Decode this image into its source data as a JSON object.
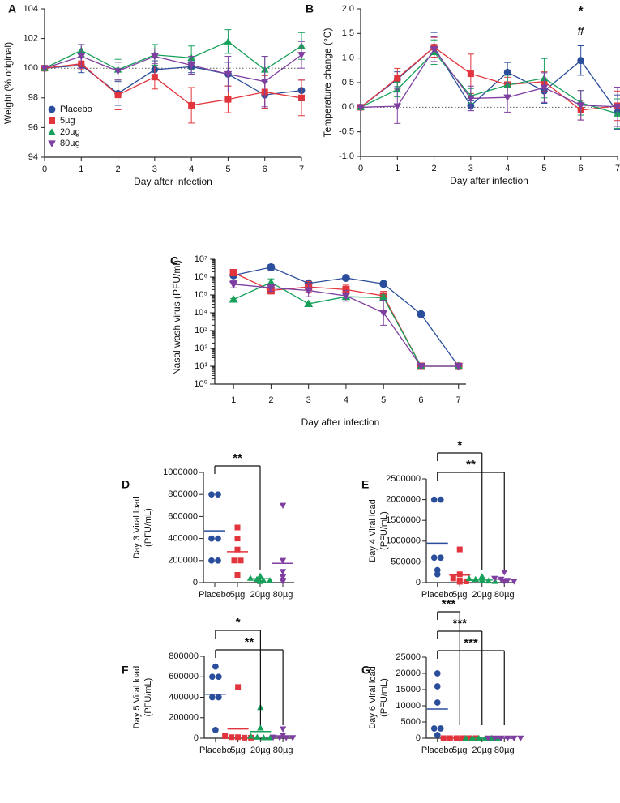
{
  "colors": {
    "placebo": "#2a4e9b",
    "5ug": "#e2343c",
    "20ug": "#16a05a",
    "80ug": "#7e3fa0"
  },
  "chart_data": [
    {
      "panel": "A",
      "type": "line",
      "xlabel": "Day after infection",
      "ylabel": "Weight (% original)",
      "x": [
        0,
        1,
        2,
        3,
        4,
        5,
        6,
        7
      ],
      "xlim": [
        0,
        7
      ],
      "ylim": [
        94,
        104
      ],
      "yticks": [
        94,
        96,
        98,
        100,
        102,
        104
      ],
      "reference_line": 100,
      "legend": "top-left",
      "series": [
        {
          "name": "Placebo",
          "key": "placebo",
          "marker": "circle",
          "values": [
            100,
            100.2,
            98.3,
            99.9,
            100.1,
            99.6,
            98.2,
            98.5
          ],
          "err": [
            0,
            0.5,
            0.8,
            0.6,
            0.4,
            0.8,
            0.9,
            0.7
          ]
        },
        {
          "name": "5µg",
          "key": "5ug",
          "marker": "square",
          "values": [
            100,
            100.3,
            98.2,
            99.4,
            97.5,
            97.9,
            98.4,
            98.0
          ],
          "err": [
            0,
            0.4,
            1.0,
            0.8,
            1.2,
            0.9,
            1.1,
            1.2
          ]
        },
        {
          "name": "20µg",
          "key": "20ug",
          "marker": "triangle",
          "values": [
            100,
            101.2,
            99.9,
            100.9,
            100.7,
            101.8,
            99.9,
            101.5
          ],
          "err": [
            0,
            0.4,
            0.7,
            0.7,
            0.8,
            0.8,
            0.9,
            0.9
          ]
        },
        {
          "name": "80µg",
          "key": "80ug",
          "marker": "triangle-down",
          "values": [
            100,
            100.8,
            99.8,
            100.8,
            100.2,
            99.6,
            99.1,
            100.9
          ],
          "err": [
            0,
            0.8,
            0.6,
            0.5,
            0.6,
            1.2,
            1.7,
            0.9
          ]
        }
      ]
    },
    {
      "panel": "B",
      "type": "line",
      "xlabel": "Day after infection",
      "ylabel": "Temperature change (°C)",
      "x": [
        0,
        1,
        2,
        3,
        4,
        5,
        6,
        7
      ],
      "xlim": [
        0,
        7
      ],
      "ylim": [
        -1.0,
        2.0
      ],
      "yticks": [
        -1.0,
        -0.5,
        0.0,
        0.5,
        1.0,
        1.5,
        2.0
      ],
      "reference_line": 0,
      "annotations": [
        {
          "x": 6,
          "texts": [
            "*",
            "#"
          ]
        }
      ],
      "series": [
        {
          "name": "Placebo",
          "key": "placebo",
          "marker": "circle",
          "values": [
            0,
            0.57,
            1.22,
            0.03,
            0.71,
            0.33,
            0.95,
            -0.1
          ],
          "err": [
            0,
            0.15,
            0.3,
            0.1,
            0.2,
            0.25,
            0.3,
            0.35
          ]
        },
        {
          "name": "5µg",
          "key": "5ug",
          "marker": "square",
          "values": [
            0,
            0.59,
            1.22,
            0.68,
            0.46,
            0.52,
            -0.06,
            0.03
          ],
          "err": [
            0,
            0.2,
            0.2,
            0.4,
            0.15,
            0.2,
            0.2,
            0.3
          ]
        },
        {
          "name": "20µg",
          "key": "20ug",
          "marker": "triangle",
          "values": [
            0,
            0.36,
            1.12,
            0.23,
            0.45,
            0.59,
            0.09,
            -0.13
          ],
          "err": [
            0,
            0.15,
            0.25,
            0.15,
            0.2,
            0.4,
            0.25,
            0.3
          ]
        },
        {
          "name": "80µg",
          "key": "80ug",
          "marker": "triangle-down",
          "values": [
            0,
            0.02,
            1.18,
            0.18,
            0.2,
            0.4,
            0.04,
            0.01
          ],
          "err": [
            0,
            0.35,
            0.25,
            0.25,
            0.3,
            0.3,
            0.3,
            0.4
          ]
        }
      ]
    },
    {
      "panel": "C",
      "type": "line",
      "scale": "log10",
      "xlabel": "Day after infection",
      "ylabel": "Nasal wash virus (PFU/ml)",
      "x": [
        1,
        2,
        3,
        4,
        5,
        6,
        7
      ],
      "xlim": [
        0.5,
        7.2
      ],
      "ylim_log10": [
        0,
        7
      ],
      "ytick_labels": [
        "10⁰",
        "10¹",
        "10²",
        "10³",
        "10⁴",
        "10⁵",
        "10⁶",
        "10⁷"
      ],
      "series": [
        {
          "name": "Placebo",
          "key": "placebo",
          "marker": "circle",
          "log10_values": [
            6.1,
            6.55,
            5.65,
            5.95,
            5.62,
            3.92,
            1.0
          ],
          "log10_err": [
            0.1,
            0.15,
            0.05,
            0.1,
            0.05,
            0.1,
            0
          ]
        },
        {
          "name": "5µg",
          "key": "5ug",
          "marker": "square",
          "log10_values": [
            6.25,
            5.25,
            5.45,
            5.3,
            4.95,
            1.0,
            1.0
          ],
          "log10_err": [
            0.15,
            0.2,
            0.3,
            0.25,
            0.25,
            0,
            0
          ]
        },
        {
          "name": "20µg",
          "key": "20ug",
          "marker": "triangle",
          "log10_values": [
            4.75,
            5.7,
            4.5,
            4.9,
            4.85,
            1.0,
            1.0
          ],
          "log10_err": [
            0.05,
            0.2,
            0.05,
            0.1,
            0.15,
            0,
            0
          ]
        },
        {
          "name": "80µg",
          "key": "80ug",
          "marker": "triangle-down",
          "log10_values": [
            5.6,
            5.4,
            5.25,
            4.95,
            4.0,
            1.0,
            1.0
          ],
          "log10_err": [
            0.2,
            0.2,
            0.35,
            0.3,
            0.7,
            0,
            0
          ]
        }
      ]
    },
    {
      "panel": "D",
      "type": "scatter",
      "ylabel_lines": [
        "Day 3 Viral load",
        "(PFU/mL)"
      ],
      "categories": [
        "Placebo",
        "5µg",
        "20µg",
        "80µg"
      ],
      "ylim": [
        0,
        1000000
      ],
      "yticks": [
        0,
        200000,
        400000,
        600000,
        800000,
        1000000
      ],
      "groups": [
        {
          "key": "placebo",
          "marker": "circle",
          "points": [
            800000,
            800000,
            400000,
            400000,
            200000,
            200000
          ],
          "mean": 470000
        },
        {
          "key": "5ug",
          "marker": "square",
          "points": [
            500000,
            400000,
            300000,
            200000,
            200000,
            70000
          ],
          "mean": 280000
        },
        {
          "key": "20ug",
          "marker": "triangle",
          "points": [
            60000,
            40000,
            30000,
            20000,
            20000,
            10000
          ],
          "mean": 35000
        },
        {
          "key": "80ug",
          "marker": "triangle-down",
          "points": [
            700000,
            200000,
            100000,
            50000,
            20000,
            10000
          ],
          "mean": 175000
        }
      ],
      "significance": [
        {
          "from": 0,
          "to": 2,
          "label": "**"
        }
      ]
    },
    {
      "panel": "E",
      "type": "scatter",
      "ylabel_lines": [
        "Day 4 Viral load",
        "(PFU/mL)"
      ],
      "categories": [
        "Placebo",
        "5µg",
        "20µg",
        "80µg"
      ],
      "ylim": [
        0,
        2500000
      ],
      "yticks": [
        0,
        500000,
        1000000,
        1500000,
        2000000,
        2500000
      ],
      "groups": [
        {
          "key": "placebo",
          "marker": "circle",
          "points": [
            2000000,
            2000000,
            600000,
            600000,
            300000,
            200000
          ],
          "mean": 950000
        },
        {
          "key": "5ug",
          "marker": "square",
          "points": [
            800000,
            200000,
            100000,
            50000,
            30000,
            20000
          ],
          "mean": 180000
        },
        {
          "key": "20ug",
          "marker": "triangle",
          "points": [
            150000,
            100000,
            80000,
            60000,
            40000,
            30000
          ],
          "mean": 60000
        },
        {
          "key": "80ug",
          "marker": "triangle-down",
          "points": [
            250000,
            100000,
            80000,
            50000,
            30000,
            20000
          ],
          "mean": 80000
        }
      ],
      "significance": [
        {
          "from": 0,
          "to": 2,
          "label": "*"
        },
        {
          "from": 0,
          "to": 3,
          "label": "**"
        }
      ]
    },
    {
      "panel": "F",
      "type": "scatter",
      "ylabel_lines": [
        "Day 5 Viral load",
        "(PFU/mL)"
      ],
      "categories": [
        "Placebo",
        "5µg",
        "20µg",
        "80µg"
      ],
      "ylim": [
        0,
        800000
      ],
      "yticks": [
        0,
        200000,
        400000,
        600000,
        800000
      ],
      "groups": [
        {
          "key": "placebo",
          "marker": "circle",
          "points": [
            700000,
            600000,
            600000,
            400000,
            400000,
            80000
          ],
          "mean": 430000
        },
        {
          "key": "5ug",
          "marker": "square",
          "points": [
            500000,
            20000,
            10000,
            10000,
            5000,
            5000
          ],
          "mean": 90000
        },
        {
          "key": "20ug",
          "marker": "triangle",
          "points": [
            300000,
            100000,
            20000,
            10000,
            5000,
            5000
          ],
          "mean": 65000
        },
        {
          "key": "80ug",
          "marker": "triangle-down",
          "points": [
            90000,
            30000,
            10000,
            5000,
            5000,
            5000
          ],
          "mean": 15000
        }
      ],
      "significance": [
        {
          "from": 0,
          "to": 2,
          "label": "*"
        },
        {
          "from": 0,
          "to": 3,
          "label": "**"
        }
      ]
    },
    {
      "panel": "G",
      "type": "scatter",
      "ylabel_lines": [
        "Day 6 Viral load",
        "(PFU/mL)"
      ],
      "categories": [
        "Placebo",
        "5µg",
        "20µg",
        "80µg"
      ],
      "ylim": [
        0,
        25000
      ],
      "yticks": [
        0,
        5000,
        10000,
        15000,
        20000,
        25000
      ],
      "groups": [
        {
          "key": "placebo",
          "marker": "circle",
          "points": [
            20000,
            16000,
            11000,
            3000,
            3000,
            1000
          ],
          "mean": 9000
        },
        {
          "key": "5ug",
          "marker": "square",
          "points": [
            10,
            10,
            10,
            10,
            10,
            10
          ],
          "mean": 10
        },
        {
          "key": "20ug",
          "marker": "triangle",
          "points": [
            10,
            10,
            10,
            10,
            10,
            10
          ],
          "mean": 10
        },
        {
          "key": "80ug",
          "marker": "triangle-down",
          "points": [
            10,
            10,
            10,
            10,
            10,
            10
          ],
          "mean": 10
        }
      ],
      "significance": [
        {
          "from": 0,
          "to": 1,
          "label": "***"
        },
        {
          "from": 0,
          "to": 2,
          "label": "***"
        },
        {
          "from": 0,
          "to": 3,
          "label": "***"
        }
      ]
    }
  ]
}
